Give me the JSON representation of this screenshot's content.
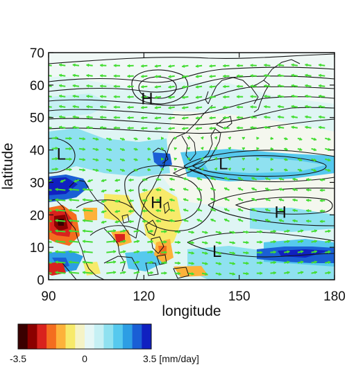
{
  "map": {
    "xlabel": "longitude",
    "ylabel": "latitude",
    "xlim": [
      90,
      180
    ],
    "ylim": [
      0,
      70
    ],
    "xticks": [
      "90",
      "120",
      "150",
      "180"
    ],
    "yticks": [
      "0",
      "10",
      "20",
      "30",
      "40",
      "50",
      "60",
      "70"
    ],
    "pressure_centers": [
      {
        "label": "H",
        "lon": 121,
        "lat": 56
      },
      {
        "label": "L",
        "lon": 94,
        "lat": 39
      },
      {
        "label": "L",
        "lon": 145,
        "lat": 36
      },
      {
        "label": "H",
        "lon": 124,
        "lat": 24
      },
      {
        "label": "H",
        "lon": 163,
        "lat": 21
      },
      {
        "label": "L",
        "lon": 143,
        "lat": 9
      }
    ],
    "vector_color": "#44dd33",
    "contour_color": "#111111",
    "coastline_color": "#111111"
  },
  "colorbar": {
    "min_label": "-3.5",
    "mid_label": "0",
    "max_label": "3.5 [mm/day]",
    "colors": [
      "#3a0000",
      "#8b0000",
      "#d9221d",
      "#f46d1f",
      "#fdb23a",
      "#f7ea6a",
      "#f5f3c6",
      "#e6f7f6",
      "#c6f0f4",
      "#8fe1f0",
      "#56c9ee",
      "#2d9ee4",
      "#1a5fd5",
      "#1020c0"
    ]
  }
}
